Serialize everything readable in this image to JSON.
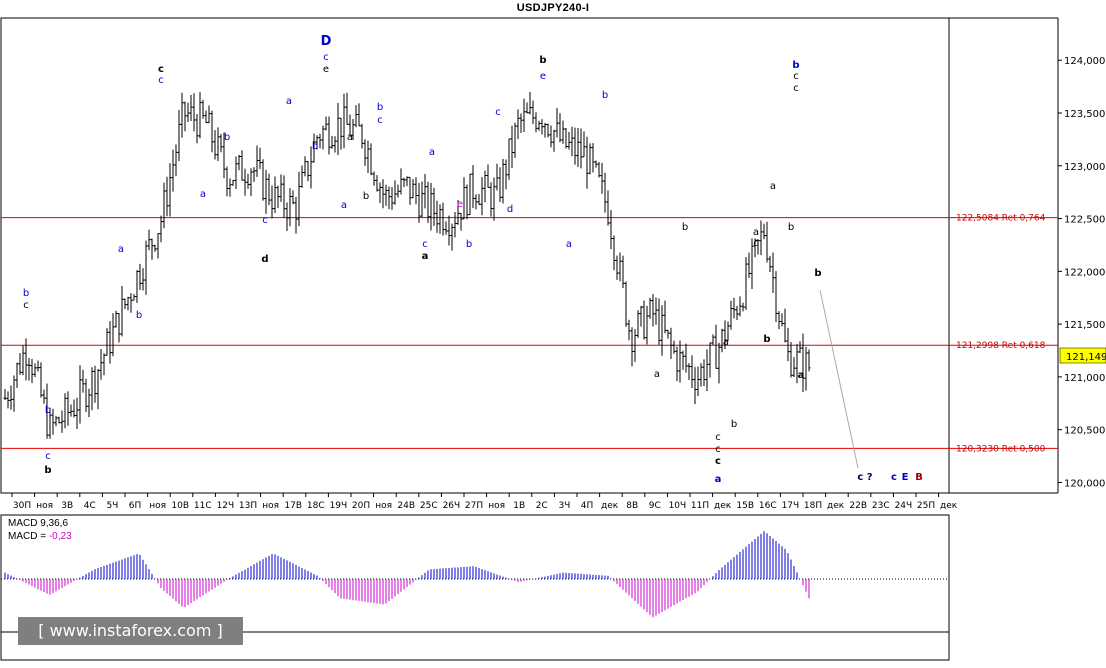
{
  "chart_data": {
    "type": "ohlc",
    "title": "USDJPY240-I",
    "y_range": [
      119.9,
      124.4
    ],
    "y_ticks": [
      "124,000",
      "123,500",
      "123,000",
      "122,500",
      "122,000",
      "121,500",
      "121,000",
      "120,500",
      "120,000"
    ],
    "y_tick_values": [
      124.0,
      123.5,
      123.0,
      122.5,
      122.0,
      121.5,
      121.0,
      120.5,
      120.0
    ],
    "x_labels": [
      "30П",
      "ноя",
      "3В",
      "4С",
      "5Ч",
      "6П",
      "ноя",
      "10В",
      "11С",
      "12Ч",
      "13П",
      "ноя",
      "17В",
      "18С",
      "19Ч",
      "20П",
      "ноя",
      "24В",
      "25С",
      "26Ч",
      "27П",
      "ноя",
      "1В",
      "2С",
      "3Ч",
      "4П",
      "дек",
      "8В",
      "9С",
      "10Ч",
      "11П",
      "дек",
      "15В",
      "16С",
      "17Ч",
      "18П",
      "дек",
      "22В",
      "23С",
      "24Ч",
      "25П",
      "дек"
    ],
    "current_price": {
      "label": "121,149",
      "value": 121.149
    },
    "fib_levels": [
      {
        "value": 122.5084,
        "label": "122,5084 Ret 0,764"
      },
      {
        "value": 121.2998,
        "label": "121,2998 Ret 0,618"
      },
      {
        "value": 120.323,
        "label": "120,3230 Ret 0,500"
      }
    ],
    "price_waypoints": [
      [
        0,
        120.8
      ],
      [
        1,
        121.3
      ],
      [
        2,
        120.5
      ],
      [
        3,
        120.7
      ],
      [
        4,
        121.0
      ],
      [
        5,
        121.5
      ],
      [
        6,
        122.0
      ],
      [
        7,
        122.5
      ],
      [
        8,
        123.5
      ],
      [
        9,
        123.4
      ],
      [
        10,
        122.9
      ],
      [
        11,
        123.0
      ],
      [
        12,
        122.7
      ],
      [
        13,
        122.6
      ],
      [
        14,
        123.3
      ],
      [
        15,
        123.4
      ],
      [
        16,
        123.3
      ],
      [
        17,
        122.7
      ],
      [
        18,
        122.8
      ],
      [
        19,
        122.6
      ],
      [
        20,
        122.5
      ],
      [
        21,
        122.8
      ],
      [
        22,
        122.7
      ],
      [
        23,
        123.4
      ],
      [
        24,
        123.5
      ],
      [
        25,
        123.2
      ],
      [
        26,
        123.1
      ],
      [
        27,
        122.6
      ],
      [
        28,
        121.4
      ],
      [
        29,
        121.6
      ],
      [
        30,
        121.2
      ],
      [
        31,
        121.0
      ],
      [
        32,
        121.3
      ],
      [
        33,
        121.8
      ],
      [
        34,
        122.4
      ],
      [
        35,
        121.2
      ],
      [
        36,
        121.1
      ]
    ],
    "macd": {
      "label_line1": "MACD 9,36,6",
      "label_line2_prefix": "MACD = ",
      "label_line2_value": "-0,23",
      "waypoints": [
        [
          0,
          0.2
        ],
        [
          2,
          -0.5
        ],
        [
          4,
          0.3
        ],
        [
          6,
          0.8
        ],
        [
          7,
          -0.3
        ],
        [
          8,
          -0.9
        ],
        [
          10,
          0.0
        ],
        [
          12,
          0.8
        ],
        [
          14,
          0.1
        ],
        [
          15,
          -0.6
        ],
        [
          17,
          -0.8
        ],
        [
          19,
          0.3
        ],
        [
          21,
          0.4
        ],
        [
          23,
          -0.1
        ],
        [
          25,
          0.2
        ],
        [
          27,
          0.1
        ],
        [
          29,
          -1.2
        ],
        [
          31,
          -0.4
        ],
        [
          32,
          0.3
        ],
        [
          34,
          1.5
        ],
        [
          35,
          0.9
        ],
        [
          36,
          -0.6
        ]
      ]
    },
    "wave_labels": [
      {
        "t": "b",
        "x": 26,
        "y": 296,
        "c": "#0000cc"
      },
      {
        "t": "c",
        "x": 26,
        "y": 308,
        "c": "#000000"
      },
      {
        "t": "b",
        "x": 48,
        "y": 413,
        "c": "#0000cc"
      },
      {
        "t": "c",
        "x": 48,
        "y": 459,
        "c": "#0000cc"
      },
      {
        "t": "b",
        "x": 48,
        "y": 473,
        "c": "#000000",
        "b": true
      },
      {
        "t": "a",
        "x": 121,
        "y": 252,
        "c": "#0000cc"
      },
      {
        "t": "b",
        "x": 139,
        "y": 318,
        "c": "#0000cc"
      },
      {
        "t": "c",
        "x": 161,
        "y": 72,
        "c": "#000000",
        "b": true
      },
      {
        "t": "c",
        "x": 161,
        "y": 83,
        "c": "#0000cc"
      },
      {
        "t": "b",
        "x": 227,
        "y": 140,
        "c": "#0000cc"
      },
      {
        "t": "a",
        "x": 203,
        "y": 197,
        "c": "#0000cc"
      },
      {
        "t": "c",
        "x": 265,
        "y": 223,
        "c": "#0000cc"
      },
      {
        "t": "d",
        "x": 265,
        "y": 262,
        "c": "#000000",
        "b": true
      },
      {
        "t": "a",
        "x": 289,
        "y": 104,
        "c": "#0000cc"
      },
      {
        "t": "b",
        "x": 315,
        "y": 149,
        "c": "#0000cc"
      },
      {
        "t": "D",
        "x": 326,
        "y": 45,
        "c": "#0000cc",
        "b": true,
        "s": 13
      },
      {
        "t": "c",
        "x": 326,
        "y": 60,
        "c": "#0000cc"
      },
      {
        "t": "e",
        "x": 326,
        "y": 72,
        "c": "#000000"
      },
      {
        "t": "a",
        "x": 350,
        "y": 140,
        "c": "#000000"
      },
      {
        "t": "a",
        "x": 344,
        "y": 208,
        "c": "#0000cc"
      },
      {
        "t": "b",
        "x": 366,
        "y": 199,
        "c": "#000000"
      },
      {
        "t": "b",
        "x": 380,
        "y": 110,
        "c": "#0000cc"
      },
      {
        "t": "c",
        "x": 380,
        "y": 123,
        "c": "#0000cc"
      },
      {
        "t": "a",
        "x": 432,
        "y": 155,
        "c": "#0000cc"
      },
      {
        "t": "c",
        "x": 425,
        "y": 247,
        "c": "#0000cc"
      },
      {
        "t": "a",
        "x": 425,
        "y": 259,
        "c": "#000000",
        "b": true
      },
      {
        "t": "b",
        "x": 469,
        "y": 247,
        "c": "#0000cc"
      },
      {
        "t": "e",
        "x": 460,
        "y": 207,
        "c": "#cc00cc"
      },
      {
        "t": "d",
        "x": 510,
        "y": 212,
        "c": "#0000cc"
      },
      {
        "t": "c",
        "x": 498,
        "y": 115,
        "c": "#0000cc"
      },
      {
        "t": "b",
        "x": 543,
        "y": 63,
        "c": "#000000",
        "b": true
      },
      {
        "t": "e",
        "x": 543,
        "y": 79,
        "c": "#0000cc"
      },
      {
        "t": "a",
        "x": 569,
        "y": 247,
        "c": "#0000cc"
      },
      {
        "t": "b",
        "x": 605,
        "y": 98,
        "c": "#0000cc"
      },
      {
        "t": "a",
        "x": 657,
        "y": 377,
        "c": "#000000"
      },
      {
        "t": "b",
        "x": 685,
        "y": 230,
        "c": "#000000"
      },
      {
        "t": "c",
        "x": 718,
        "y": 440,
        "c": "#000000"
      },
      {
        "t": "c",
        "x": 718,
        "y": 452,
        "c": "#000000"
      },
      {
        "t": "c",
        "x": 718,
        "y": 464,
        "c": "#000000",
        "b": true
      },
      {
        "t": "a",
        "x": 718,
        "y": 482,
        "c": "#0000cc",
        "b": true
      },
      {
        "t": "b",
        "x": 734,
        "y": 427,
        "c": "#000000"
      },
      {
        "t": "a",
        "x": 726,
        "y": 345,
        "c": "#000000"
      },
      {
        "t": "a",
        "x": 756,
        "y": 235,
        "c": "#000000"
      },
      {
        "t": "c",
        "x": 756,
        "y": 246,
        "c": "#000000"
      },
      {
        "t": "b",
        "x": 767,
        "y": 342,
        "c": "#000000",
        "b": true
      },
      {
        "t": "a",
        "x": 773,
        "y": 189,
        "c": "#000000"
      },
      {
        "t": "b",
        "x": 791,
        "y": 230,
        "c": "#000000"
      },
      {
        "t": "b",
        "x": 796,
        "y": 68,
        "c": "#0000cc",
        "b": true
      },
      {
        "t": "c",
        "x": 796,
        "y": 79,
        "c": "#000000"
      },
      {
        "t": "c",
        "x": 796,
        "y": 91,
        "c": "#000000"
      },
      {
        "t": "a",
        "x": 801,
        "y": 378,
        "c": "#000000",
        "b": true
      },
      {
        "t": "b",
        "x": 818,
        "y": 276,
        "c": "#000000",
        "b": true
      }
    ],
    "forecast_labels": [
      {
        "t": "c ?",
        "x": 865,
        "y": 480,
        "c": "#000066",
        "b": true
      },
      {
        "t": "c",
        "x": 894,
        "y": 480,
        "c": "#0000cc",
        "b": true
      },
      {
        "t": "E",
        "x": 905,
        "y": 480,
        "c": "#0000cc",
        "b": true
      },
      {
        "t": "B",
        "x": 919,
        "y": 480,
        "c": "#990000",
        "b": true
      }
    ]
  },
  "colors": {
    "bars": "#000000",
    "fib_line": "#e00000",
    "fib_label": "#cc0000",
    "macd_positive": "#0000cc",
    "macd_negative": "#cc00cc",
    "price_box": "#ffff00",
    "forecast_line": "#aaaaaa"
  },
  "watermark": "[ www.instaforex.com ]"
}
